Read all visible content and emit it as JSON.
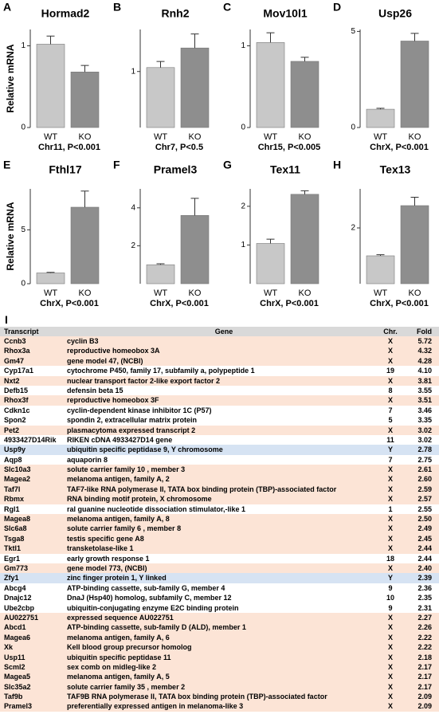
{
  "chart_data": [
    {
      "type": "bar",
      "letter": "A",
      "title": "Hormad2",
      "ylabel": "Relative mRNA",
      "categories": [
        "WT",
        "KO"
      ],
      "values": [
        1.02,
        0.68
      ],
      "errors": [
        0.1,
        0.08
      ],
      "colors": [
        "#c8c8c8",
        "#8e8e8e"
      ],
      "ylim": [
        0,
        1.2
      ],
      "yticks": [
        0,
        1
      ],
      "xlabel": "Chr11, P<0.001"
    },
    {
      "type": "bar",
      "letter": "B",
      "title": "Rnh2",
      "categories": [
        "WT",
        "KO"
      ],
      "values": [
        1.07,
        1.42
      ],
      "errors": [
        0.11,
        0.25
      ],
      "colors": [
        "#c8c8c8",
        "#8e8e8e"
      ],
      "ylim": [
        0,
        1.75
      ],
      "yticks": [
        1
      ],
      "xlabel": "Chr7, P<0.5"
    },
    {
      "type": "bar",
      "letter": "C",
      "title": "Mov10l1",
      "categories": [
        "WT",
        "KO"
      ],
      "values": [
        1.04,
        0.81
      ],
      "errors": [
        0.12,
        0.05
      ],
      "colors": [
        "#c8c8c8",
        "#8e8e8e"
      ],
      "ylim": [
        0,
        1.2
      ],
      "yticks": [
        0,
        1
      ],
      "xlabel": "Chr15, P<0.005"
    },
    {
      "type": "bar",
      "letter": "D",
      "title": "Usp26",
      "categories": [
        "WT",
        "KO"
      ],
      "values": [
        0.95,
        4.5
      ],
      "errors": [
        0.05,
        0.4
      ],
      "colors": [
        "#c8c8c8",
        "#8e8e8e"
      ],
      "ylim": [
        0,
        5.1
      ],
      "yticks": [
        0,
        5
      ],
      "xlabel": "ChrX, P<0.001"
    },
    {
      "type": "bar",
      "letter": "E",
      "title": "Fthl17",
      "ylabel": "Relative mRNA",
      "categories": [
        "WT",
        "KO"
      ],
      "values": [
        1,
        7.1
      ],
      "errors": [
        0.05,
        1.5
      ],
      "colors": [
        "#c8c8c8",
        "#8e8e8e"
      ],
      "ylim": [
        0,
        8.8
      ],
      "yticks": [
        0,
        5
      ],
      "xlabel": "ChrX, P<0.001"
    },
    {
      "type": "bar",
      "letter": "F",
      "title": "Pramel3",
      "categories": [
        "WT",
        "KO"
      ],
      "values": [
        1,
        3.6
      ],
      "errors": [
        0.05,
        0.9
      ],
      "colors": [
        "#c8c8c8",
        "#8e8e8e"
      ],
      "ylim": [
        0,
        5
      ],
      "yticks": [
        2,
        4
      ],
      "xlabel": "ChrX, P<0.001"
    },
    {
      "type": "bar",
      "letter": "G",
      "title": "Tex11",
      "categories": [
        "WT",
        "KO"
      ],
      "values": [
        1.04,
        2.31
      ],
      "errors": [
        0.11,
        0.09
      ],
      "colors": [
        "#c8c8c8",
        "#8e8e8e"
      ],
      "ylim": [
        0,
        2.45
      ],
      "yticks": [
        1,
        2
      ],
      "xlabel": "ChrX, P<0.001"
    },
    {
      "type": "bar",
      "letter": "H",
      "title": "Tex13",
      "categories": [
        "WT",
        "KO"
      ],
      "values": [
        1,
        2.8
      ],
      "errors": [
        0.04,
        0.3
      ],
      "colors": [
        "#c8c8c8",
        "#8e8e8e"
      ],
      "ylim": [
        0,
        3.4
      ],
      "yticks": [
        2
      ],
      "xlabel": "ChrX, P<0.001"
    }
  ],
  "table": {
    "letter": "I",
    "columns": [
      "Transcript",
      "Gene",
      "Chr.",
      "Fold"
    ],
    "row_colors": {
      "X": "#fce4d6",
      "Y": "#d6e3f3",
      "other": "#ffffff"
    },
    "rows": [
      [
        "Ccnb3",
        "cyclin B3",
        "X",
        "5.72"
      ],
      [
        "Rhox3a",
        "reproductive homeobox 3A",
        "X",
        "4.32"
      ],
      [
        "Gm47",
        "gene model 47, (NCBI)",
        "X",
        "4.28"
      ],
      [
        "Cyp17a1",
        "cytochrome P450, family 17, subfamily a, polypeptide 1",
        "19",
        "4.10"
      ],
      [
        "Nxt2",
        "nuclear transport factor 2-like export factor 2",
        "X",
        "3.81"
      ],
      [
        "Defb15",
        "defensin beta 15",
        "8",
        "3.55"
      ],
      [
        "Rhox3f",
        "reproductive homeobox 3F",
        "X",
        "3.51"
      ],
      [
        "Cdkn1c",
        "cyclin-dependent kinase inhibitor 1C (P57)",
        "7",
        "3.46"
      ],
      [
        "Spon2",
        "spondin 2, extracellular matrix protein",
        "5",
        "3.35"
      ],
      [
        "Pet2",
        "plasmacytoma expressed transcript 2",
        "X",
        "3.02"
      ],
      [
        "4933427D14Rik",
        "RIKEN cDNA 4933427D14 gene",
        "11",
        "3.02"
      ],
      [
        "Usp9y",
        "ubiquitin specific peptidase 9, Y chromosome",
        "Y",
        "2.78"
      ],
      [
        "Aqp8",
        "aquaporin 8",
        "7",
        "2.75"
      ],
      [
        "Slc10a3",
        "solute carrier family 10 , member 3",
        "X",
        "2.61"
      ],
      [
        "Magea2",
        "melanoma antigen, family A, 2",
        "X",
        "2.60"
      ],
      [
        "Taf7l",
        "TAF7-like RNA polymerase II, TATA box binding protein (TBP)-associated factor",
        "X",
        "2.59"
      ],
      [
        "Rbmx",
        "RNA binding motif protein, X chromosome",
        "X",
        "2.57"
      ],
      [
        "Rgl1",
        "ral guanine nucleotide dissociation stimulator,-like 1",
        "1",
        "2.55"
      ],
      [
        "Magea8",
        "melanoma antigen, family A, 8",
        "X",
        "2.50"
      ],
      [
        "Slc6a8",
        "solute carrier family 6 , member 8",
        "X",
        "2.49"
      ],
      [
        "Tsga8",
        "testis specific gene A8",
        "X",
        "2.45"
      ],
      [
        "Tktl1",
        "transketolase-like 1",
        "X",
        "2.44"
      ],
      [
        "Egr1",
        "early growth response 1",
        "18",
        "2.44"
      ],
      [
        "Gm773",
        "gene model 773, (NCBI)",
        "X",
        "2.40"
      ],
      [
        "Zfy1",
        "zinc finger protein 1, Y linked",
        "Y",
        "2.39"
      ],
      [
        "Abcg4",
        "ATP-binding cassette, sub-family G, member 4",
        "9",
        "2.36"
      ],
      [
        "Dnajc12",
        "DnaJ (Hsp40) homolog, subfamily C, member 12",
        "10",
        "2.35"
      ],
      [
        "Ube2cbp",
        "ubiquitin-conjugating enzyme E2C binding protein",
        "9",
        "2.31"
      ],
      [
        "AU022751",
        "expressed sequence AU022751",
        "X",
        "2.27"
      ],
      [
        "Abcd1",
        "ATP-binding cassette, sub-family D (ALD), member 1",
        "X",
        "2.26"
      ],
      [
        "Magea6",
        "melanoma antigen, family A, 6",
        "X",
        "2.22"
      ],
      [
        "Xk",
        "Kell blood group precursor homolog",
        "X",
        "2.22"
      ],
      [
        "Usp11",
        "ubiquitin specific peptidase 11",
        "X",
        "2.18"
      ],
      [
        "Scml2",
        "sex comb on midleg-like 2",
        "X",
        "2.17"
      ],
      [
        "Magea5",
        "melanoma antigen, family A, 5",
        "X",
        "2.17"
      ],
      [
        "Slc35a2",
        "solute carrier family 35 , member 2",
        "X",
        "2.17"
      ],
      [
        "Taf9b",
        "TAF9B RNA polymerase II, TATA box binding protein (TBP)-associated factor",
        "X",
        "2.09"
      ],
      [
        "Pramel3",
        "preferentially expressed antigen in melanoma-like 3",
        "X",
        "2.09"
      ]
    ]
  }
}
